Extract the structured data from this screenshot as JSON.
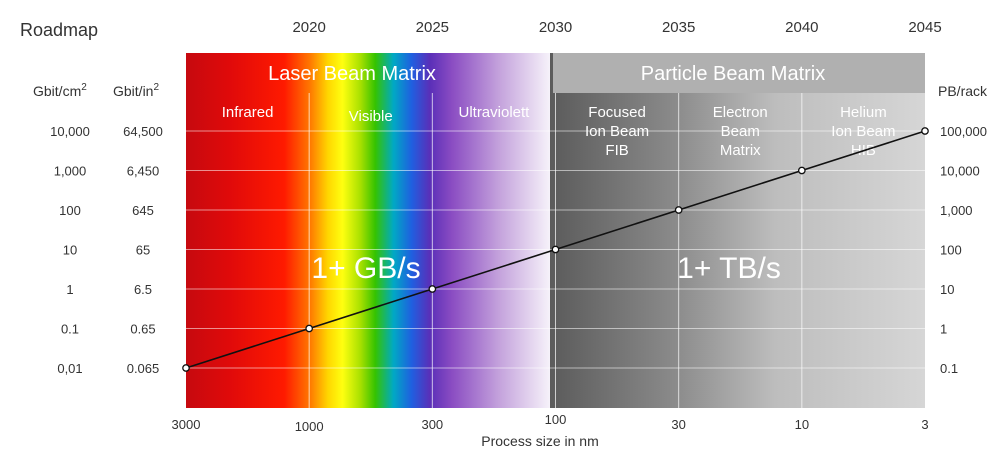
{
  "chart_data": {
    "type": "line",
    "title": "Roadmap",
    "xlabel": "Process size in nm",
    "years": [
      "2020",
      "2025",
      "2030",
      "2035",
      "2040",
      "2045"
    ],
    "x_ticks": [
      "3000",
      "1000",
      "300",
      "100",
      "30",
      "10",
      "3"
    ],
    "left_axis_1": {
      "label": "Gbit/cm",
      "label_sup": "2",
      "ticks": [
        "10,000",
        "1,000",
        "100",
        "10",
        "1",
        "0.1",
        "0,01"
      ]
    },
    "left_axis_2": {
      "label": "Gbit/in",
      "label_sup": "2",
      "ticks": [
        "64,500",
        "6,450",
        "645",
        "65",
        "6.5",
        "0.65",
        "0.065"
      ]
    },
    "right_axis": {
      "label": "PB/rack",
      "ticks": [
        "100,000",
        "10,000",
        "1,000",
        "100",
        "10",
        "1",
        "0.1"
      ]
    },
    "series": [
      {
        "points": [
          {
            "year": 2015,
            "size_nm": 3000,
            "gbit_cm2": 0.01
          },
          {
            "year": 2020,
            "size_nm": 1000,
            "gbit_cm2": 0.1
          },
          {
            "year": 2025,
            "size_nm": 300,
            "gbit_cm2": 1
          },
          {
            "year": 2030,
            "size_nm": 100,
            "gbit_cm2": 10
          },
          {
            "year": 2035,
            "size_nm": 30,
            "gbit_cm2": 100
          },
          {
            "year": 2040,
            "size_nm": 10,
            "gbit_cm2": 1000
          },
          {
            "year": 2045,
            "size_nm": 3,
            "gbit_cm2": 10000
          }
        ]
      }
    ],
    "groups": [
      {
        "label": "Laser Beam Matrix",
        "from_year": 2015,
        "to_year": 2030
      },
      {
        "label": "Particle Beam Matrix",
        "from_year": 2030,
        "to_year": 2045
      }
    ],
    "bands": [
      {
        "label": "Infrared",
        "from_year": 2015,
        "to_year": 2020
      },
      {
        "label": "Visible",
        "from_year": 2020,
        "to_year": 2025
      },
      {
        "label": "Ultraviolett",
        "from_year": 2025,
        "to_year": 2030
      },
      {
        "label": "Focused\nIon Beam\nFIB",
        "from_year": 2030,
        "to_year": 2035
      },
      {
        "label": "Electron\nBeam\nMatrix",
        "from_year": 2035,
        "to_year": 2040
      },
      {
        "label": "Helium\nIon Beam\nHIB",
        "from_year": 2040,
        "to_year": 2045
      }
    ],
    "annotations": [
      "1+ GB/s",
      "1+ TB/s"
    ],
    "grid": true
  }
}
